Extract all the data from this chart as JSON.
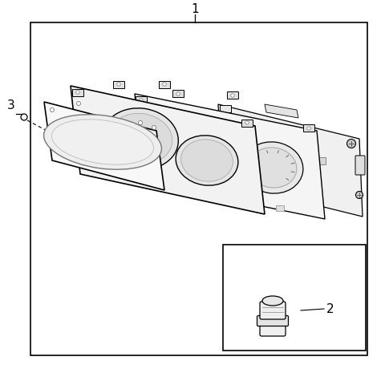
{
  "bg_color": "#ffffff",
  "line_color": "#000000",
  "label_1": "1",
  "label_2": "2",
  "label_3": "3",
  "label_fontsize": 11,
  "fig_width": 4.8,
  "fig_height": 4.65,
  "dpi": 100
}
